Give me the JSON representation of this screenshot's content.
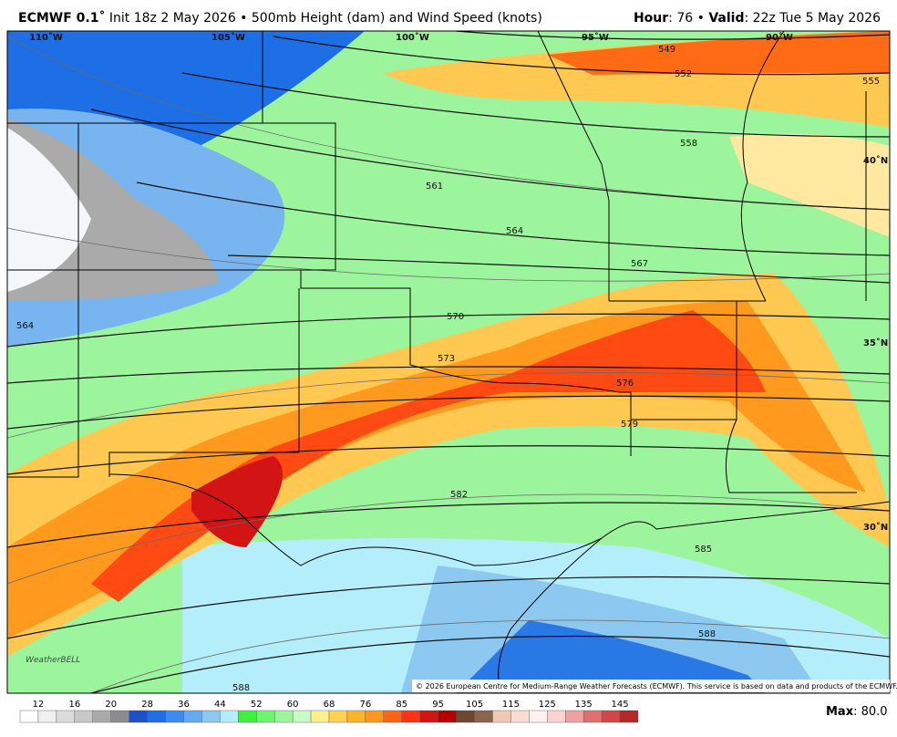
{
  "header": {
    "model": "ECMWF 0.1˚",
    "description": "Init 18z 2 May 2026 • 500mb Height (dam) and Wind Speed (knots)",
    "hour_label": "Hour",
    "hour": ": 76 •",
    "valid_label": "Valid",
    "valid": ": 22z Tue 5 May 2026"
  },
  "longitude_labels": [
    "110˚W",
    "105˚W",
    "100˚W",
    "95˚W",
    "90˚W"
  ],
  "latitude_labels": [
    "40˚N",
    "35˚N",
    "30˚N"
  ],
  "contour_labels": [
    "549",
    "552",
    "555",
    "558",
    "561",
    "564",
    "567",
    "570",
    "573",
    "576",
    "579",
    "582",
    "585",
    "588",
    "564",
    "588"
  ],
  "copyright": "© 2026 European Centre for Medium-Range Weather Forecasts (ECMWF). This service is based on data and products of the ECMWF.",
  "logo": "WeatherBELL",
  "colorbar_labels": [
    "12",
    "16",
    "20",
    "28",
    "36",
    "44",
    "52",
    "60",
    "68",
    "76",
    "85",
    "95",
    "105",
    "115",
    "125",
    "135",
    "145"
  ],
  "max": {
    "label": "Max",
    "value": ": 80.0"
  }
}
